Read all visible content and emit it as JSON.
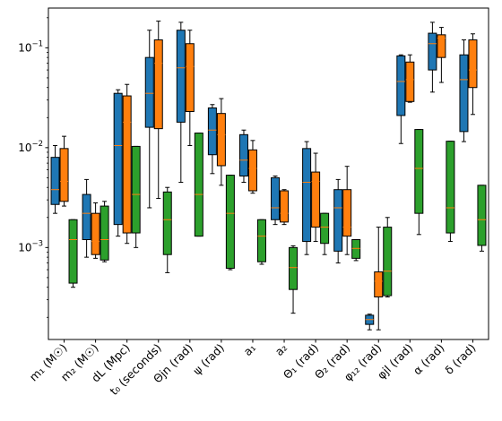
{
  "chart_data": {
    "type": "box",
    "yscale": "log",
    "ylim": [
      0.00012,
      0.25
    ],
    "yticks": [
      {
        "value": 0.001,
        "base": "10",
        "exp": "−3"
      },
      {
        "value": 0.01,
        "base": "10",
        "exp": "−2"
      },
      {
        "value": 0.1,
        "base": "10",
        "exp": "−1"
      }
    ],
    "categories": [
      "m₁ (M☉)",
      "m₂ (M☉)",
      "dL (Mpc)",
      "t₀ (seconds)",
      "Θjn (rad)",
      "ψ (rad)",
      "a₁",
      "a₂",
      "Θ₁ (rad)",
      "Θ₂ (rad)",
      "φ₁₂ (rad)",
      "φjl (rad)",
      "α (rad)",
      "δ (rad)"
    ],
    "series": [
      {
        "color": "#1f77b4",
        "boxes": [
          {
            "min": 0.0022,
            "q1": 0.0027,
            "median": 0.0038,
            "q3": 0.008,
            "max": 0.0105
          },
          {
            "min": 0.0008,
            "q1": 0.0012,
            "median": 0.0022,
            "q3": 0.0034,
            "max": 0.0048
          },
          {
            "min": 0.0013,
            "q1": 0.0017,
            "median": 0.0105,
            "q3": 0.035,
            "max": 0.038
          },
          {
            "min": 0.0025,
            "q1": 0.016,
            "median": 0.035,
            "q3": 0.08,
            "max": 0.15
          },
          {
            "min": 0.0045,
            "q1": 0.018,
            "median": 0.063,
            "q3": 0.15,
            "max": 0.18
          },
          {
            "min": 0.0055,
            "q1": 0.0085,
            "median": 0.015,
            "q3": 0.025,
            "max": 0.027
          },
          {
            "min": 0.0045,
            "q1": 0.0052,
            "median": 0.0075,
            "q3": 0.0135,
            "max": 0.015
          },
          {
            "min": 0.0017,
            "q1": 0.0019,
            "median": 0.0025,
            "q3": 0.005,
            "max": 0.0052
          },
          {
            "min": 0.00085,
            "q1": 0.00115,
            "median": 0.0045,
            "q3": 0.0098,
            "max": 0.0115
          },
          {
            "min": 0.0007,
            "q1": 0.00092,
            "median": 0.0025,
            "q3": 0.0038,
            "max": 0.0048
          },
          {
            "min": 0.00015,
            "q1": 0.00017,
            "median": 0.00019,
            "q3": 0.00021,
            "max": 0.000215
          },
          {
            "min": 0.011,
            "q1": 0.021,
            "median": 0.046,
            "q3": 0.083,
            "max": 0.085
          },
          {
            "min": 0.036,
            "q1": 0.06,
            "median": 0.11,
            "q3": 0.14,
            "max": 0.18
          },
          {
            "min": 0.0115,
            "q1": 0.0145,
            "median": 0.048,
            "q3": 0.085,
            "max": 0.12
          }
        ]
      },
      {
        "color": "#ff7f0e",
        "boxes": [
          {
            "min": 0.0026,
            "q1": 0.0029,
            "median": 0.0046,
            "q3": 0.0098,
            "max": 0.013
          },
          {
            "min": 0.00078,
            "q1": 0.00085,
            "median": 0.00115,
            "q3": 0.0022,
            "max": 0.0028
          },
          {
            "min": 0.0011,
            "q1": 0.0014,
            "median": 0.018,
            "q3": 0.033,
            "max": 0.043
          },
          {
            "min": 0.0031,
            "q1": 0.0155,
            "median": 0.07,
            "q3": 0.12,
            "max": 0.185
          },
          {
            "min": 0.0105,
            "q1": 0.023,
            "median": 0.065,
            "q3": 0.11,
            "max": 0.15
          },
          {
            "min": 0.0042,
            "q1": 0.0066,
            "median": 0.0135,
            "q3": 0.022,
            "max": 0.031
          },
          {
            "min": 0.0035,
            "q1": 0.0037,
            "median": 0.0062,
            "q3": 0.0095,
            "max": 0.0118
          },
          {
            "min": 0.0017,
            "q1": 0.0018,
            "median": 0.0022,
            "q3": 0.0037,
            "max": 0.0038
          },
          {
            "min": 0.00115,
            "q1": 0.0016,
            "median": 0.0046,
            "q3": 0.0057,
            "max": 0.0088
          },
          {
            "min": 0.00085,
            "q1": 0.0013,
            "median": 0.0016,
            "q3": 0.0038,
            "max": 0.0065
          },
          {
            "min": 0.00015,
            "q1": 0.00032,
            "median": 0.00046,
            "q3": 0.00057,
            "max": 0.0016
          },
          {
            "min": 0.0285,
            "q1": 0.029,
            "median": 0.048,
            "q3": 0.072,
            "max": 0.085
          },
          {
            "min": 0.045,
            "q1": 0.08,
            "median": 0.125,
            "q3": 0.135,
            "max": 0.16
          },
          {
            "min": 0.0215,
            "q1": 0.04,
            "median": 0.06,
            "q3": 0.12,
            "max": 0.138
          }
        ]
      },
      {
        "color": "#2ca02c",
        "boxes": [
          {
            "min": 0.0004,
            "q1": 0.00044,
            "median": 0.0012,
            "q3": 0.0019,
            "max": 0.0019
          },
          {
            "min": 0.00072,
            "q1": 0.00075,
            "median": 0.0012,
            "q3": 0.0026,
            "max": 0.0029
          },
          {
            "min": 0.001,
            "q1": 0.0014,
            "median": 0.0034,
            "q3": 0.0103,
            "max": 0.0103
          },
          {
            "min": 0.00056,
            "q1": 0.00085,
            "median": 0.0019,
            "q3": 0.0036,
            "max": 0.004
          },
          {
            "min": 0.0013,
            "q1": 0.0013,
            "median": 0.0034,
            "q3": 0.014,
            "max": 0.014
          },
          {
            "min": 0.0006,
            "q1": 0.00062,
            "median": 0.0022,
            "q3": 0.0053,
            "max": 0.0053
          },
          {
            "min": 0.00068,
            "q1": 0.00072,
            "median": 0.0013,
            "q3": 0.0019,
            "max": 0.0019
          },
          {
            "min": 0.00022,
            "q1": 0.00038,
            "median": 0.00063,
            "q3": 0.001,
            "max": 0.00104
          },
          {
            "min": 0.00085,
            "q1": 0.0011,
            "median": 0.0016,
            "q3": 0.0022,
            "max": 0.0022
          },
          {
            "min": 0.00074,
            "q1": 0.00078,
            "median": 0.00098,
            "q3": 0.0012,
            "max": 0.0012
          },
          {
            "min": 0.00032,
            "q1": 0.00033,
            "median": 0.00058,
            "q3": 0.0016,
            "max": 0.002
          },
          {
            "min": 0.00135,
            "q1": 0.0022,
            "median": 0.0062,
            "q3": 0.0152,
            "max": 0.0152
          },
          {
            "min": 0.00115,
            "q1": 0.0014,
            "median": 0.0025,
            "q3": 0.0116,
            "max": 0.0116
          },
          {
            "min": 0.00092,
            "q1": 0.00105,
            "median": 0.0019,
            "q3": 0.0042,
            "max": 0.0042
          }
        ]
      }
    ],
    "median_color": "#ff7f0e",
    "grid": false
  }
}
